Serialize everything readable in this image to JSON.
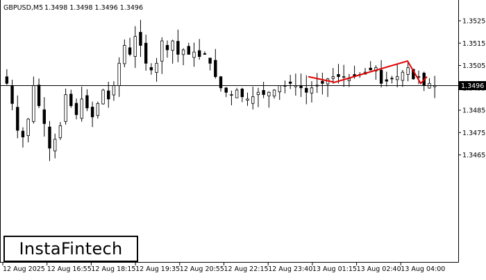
{
  "chart_header": {
    "symbol": "GBPUSD,M5",
    "ohlc": "1.3498 1.3498 1.3496 1.3496"
  },
  "current_price_label": "1.3496",
  "logo": "InstaFintech",
  "chart_data": {
    "type": "candlestick",
    "title": "GBPUSD,M5",
    "ylim": [
      1.3459,
      1.3532
    ],
    "y_ticks": [
      "1.3525",
      "1.3515",
      "1.3505",
      "1.3495",
      "1.3485",
      "1.3475",
      "1.3465"
    ],
    "x_ticks": [
      "12 Aug 2025",
      "12 Aug 16:55",
      "12 Aug 18:15",
      "12 Aug 19:35",
      "12 Aug 20:55",
      "12 Aug 22:15",
      "12 Aug 23:40",
      "13 Aug 01:15",
      "13 Aug 02:40",
      "13 Aug 04:00"
    ],
    "current_price": 1.3496,
    "close_series": [
      1.3497,
      1.3488,
      1.3476,
      1.3473,
      1.3481,
      1.3496,
      1.3487,
      1.3479,
      1.3468,
      1.3472,
      1.3478,
      1.3492,
      1.3487,
      1.3483,
      1.349,
      1.3486,
      1.3482,
      1.3488,
      1.3494,
      1.349,
      1.3496,
      1.3506,
      1.3514,
      1.351,
      1.3518,
      1.3514,
      1.3506,
      1.3503,
      1.3506,
      1.3516,
      1.3512,
      1.3516,
      1.351,
      1.3512,
      1.351,
      1.3511,
      1.3509,
      1.351,
      1.3506,
      1.35,
      1.3495,
      1.3493,
      1.3492,
      1.3494,
      1.3491,
      1.349,
      1.3491,
      1.3493,
      1.3492,
      1.3493,
      1.3494,
      1.3496,
      1.3496,
      1.3497,
      1.3496,
      1.3495,
      1.3493,
      1.3495,
      1.3496,
      1.3497,
      1.3499,
      1.35,
      1.35,
      1.35,
      1.3499,
      1.35,
      1.3501,
      1.3502,
      1.3503,
      1.3504,
      1.3497,
      1.3498,
      1.3499,
      1.35,
      1.3502,
      1.3504,
      1.3499,
      1.35,
      1.3496,
      1.3497,
      1.3496
    ],
    "pattern": {
      "color": "#e00000",
      "points": [
        {
          "x": "13 Aug 00:40",
          "y": 1.35
        },
        {
          "x": "13 Aug 01:25",
          "y": 1.34975
        },
        {
          "x": "13 Aug 04:05",
          "y": 1.3507
        },
        {
          "x": "13 Aug 04:25",
          "y": 1.3497
        },
        {
          "x": "13 Aug 04:30",
          "y": 1.35
        }
      ]
    },
    "colors": {
      "candle": "#000000",
      "grid_line": "#000000",
      "pattern": "#e00000"
    }
  }
}
